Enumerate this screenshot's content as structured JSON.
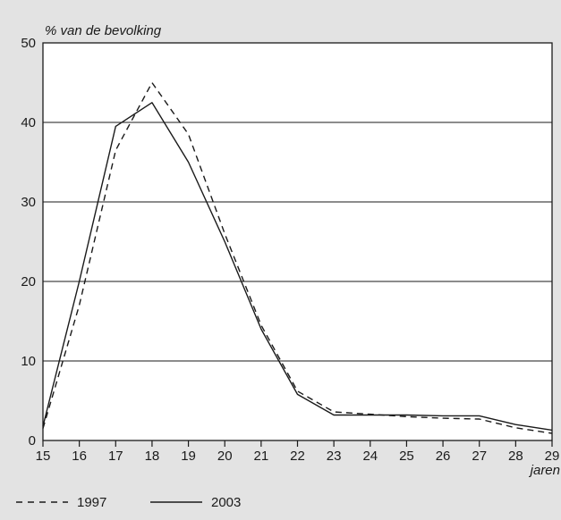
{
  "chart_data": {
    "type": "line",
    "title": "",
    "ylabel": "% van de bevolking",
    "xlabel": "jaren",
    "x": [
      15,
      16,
      17,
      18,
      19,
      20,
      21,
      22,
      23,
      24,
      25,
      26,
      27,
      28,
      29
    ],
    "xticks": [
      "15",
      "16",
      "17",
      "18",
      "19",
      "20",
      "21",
      "22",
      "23",
      "24",
      "25",
      "26",
      "27",
      "28",
      "29"
    ],
    "yticks": [
      "0",
      "10",
      "20",
      "30",
      "40",
      "50"
    ],
    "xlim": [
      15,
      29
    ],
    "ylim": [
      0,
      50
    ],
    "grid": "horizontal",
    "legend_position": "bottom-left",
    "series": [
      {
        "name": "1997",
        "style": "dashed",
        "color": "#1a1a1a",
        "values": [
          1.5,
          17.0,
          36.5,
          45.0,
          38.5,
          26.0,
          14.5,
          6.2,
          3.6,
          3.3,
          3.0,
          2.8,
          2.7,
          1.6,
          0.9
        ]
      },
      {
        "name": "2003",
        "style": "solid",
        "color": "#1a1a1a",
        "values": [
          1.8,
          20.0,
          39.5,
          42.5,
          35.0,
          25.0,
          14.0,
          5.8,
          3.2,
          3.2,
          3.2,
          3.1,
          3.1,
          2.0,
          1.3
        ]
      }
    ]
  }
}
